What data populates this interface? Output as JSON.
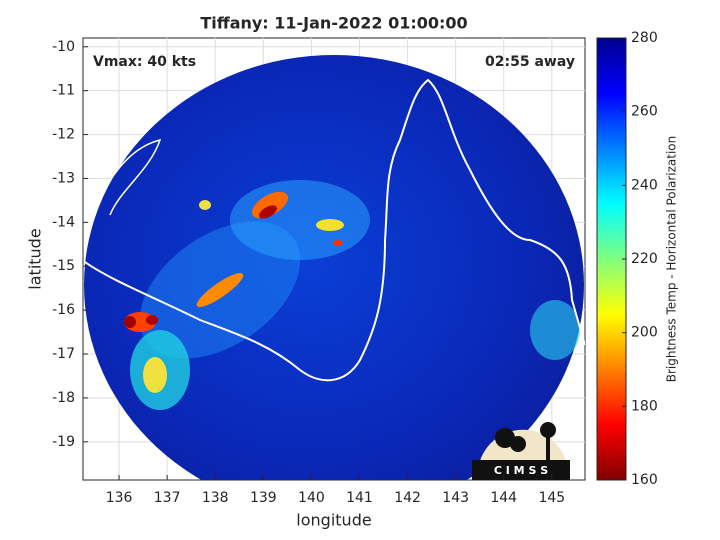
{
  "chart_data": {
    "type": "image_map",
    "title": "Tiffany: 11-Jan-2022 01:00:00",
    "annotations": [
      "Vmax: 40 kts",
      "02:55 away"
    ],
    "xlabel": "longitude",
    "ylabel": "latitude",
    "xlim": [
      135.25,
      145.69
    ],
    "xticks": [
      136,
      137,
      138,
      139,
      140,
      141,
      142,
      143,
      144,
      145
    ],
    "ylim": [
      -19.87,
      -9.8
    ],
    "yticks": [
      -19,
      -18,
      -17,
      -16,
      -15,
      -14,
      -13,
      -12,
      -11,
      -10
    ],
    "grid": true,
    "colorbar": {
      "label": "Brightness Temp - Horizontal Polarization",
      "lim": [
        160,
        280
      ],
      "ticks": [
        160,
        180,
        200,
        220,
        240,
        260,
        280
      ],
      "colormap": [
        "#800000",
        "#ff0000",
        "#ff8000",
        "#ffff00",
        "#80ff80",
        "#00ffff",
        "#0080ff",
        "#0000ff",
        "#00008f"
      ]
    },
    "logo": "C I M S S"
  }
}
